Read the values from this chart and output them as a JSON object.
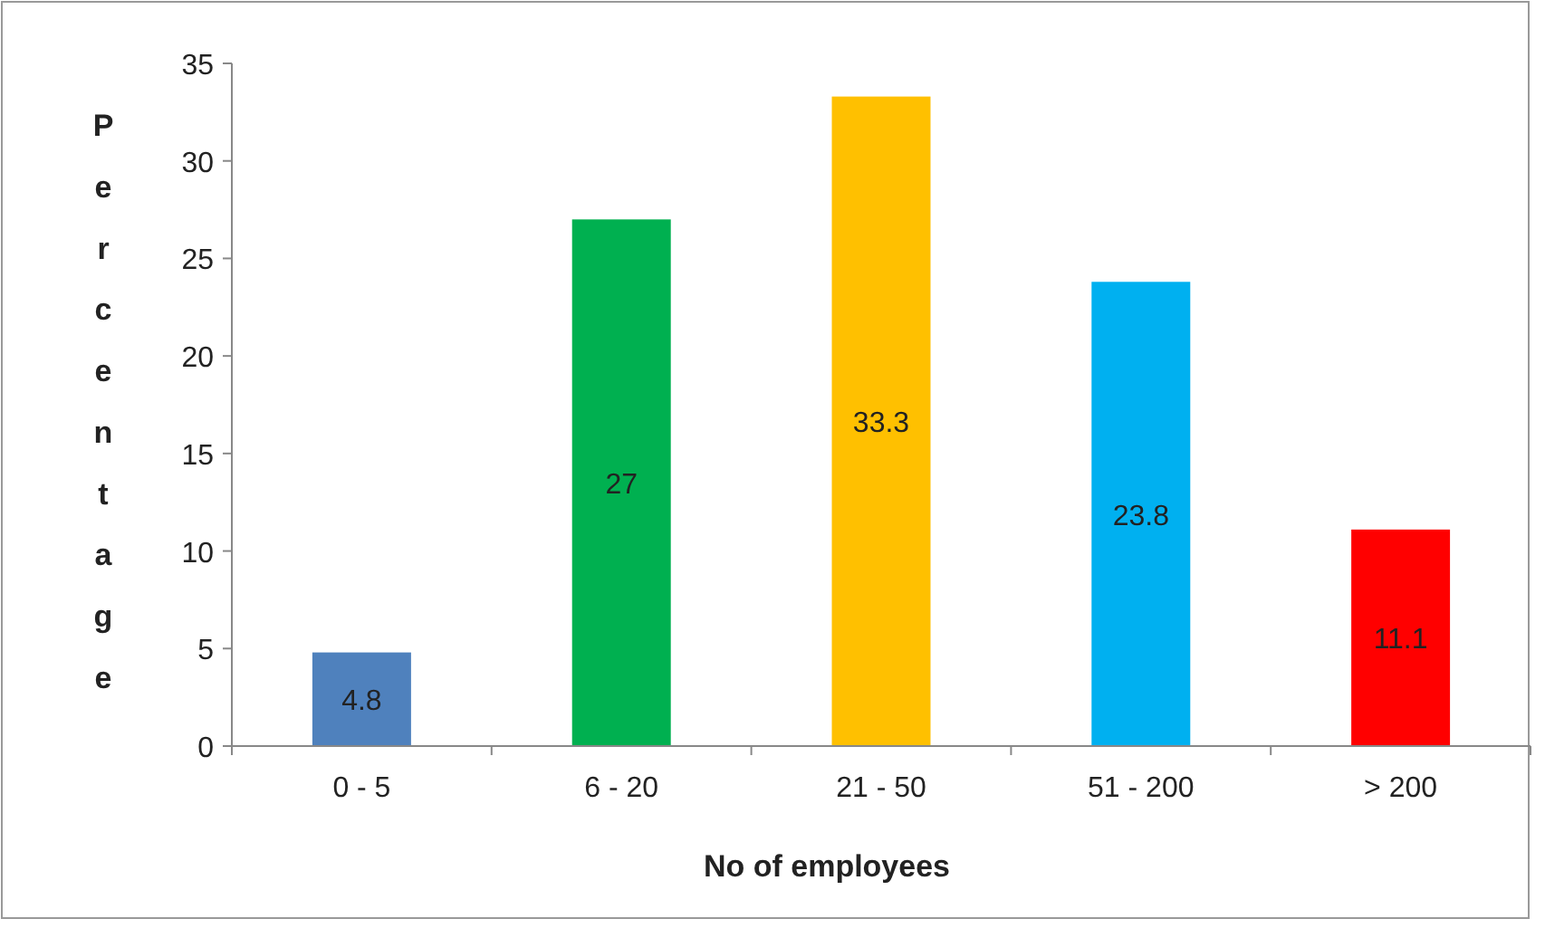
{
  "chart_data": {
    "type": "bar",
    "xlabel": "No of employees",
    "ylabel": "Percentage",
    "categories": [
      "0 - 5",
      "6 - 20",
      "21 - 50",
      "51 - 200",
      "> 200"
    ],
    "values": [
      4.8,
      27,
      33.3,
      23.8,
      11.1
    ],
    "colors": [
      "#4f81bd",
      "#00b050",
      "#ffc000",
      "#00b0f0",
      "#ff0000"
    ],
    "ylim": [
      0,
      35
    ],
    "yticks": [
      0,
      5,
      10,
      15,
      20,
      25,
      30,
      35
    ],
    "grid": false,
    "data_labels": true
  }
}
